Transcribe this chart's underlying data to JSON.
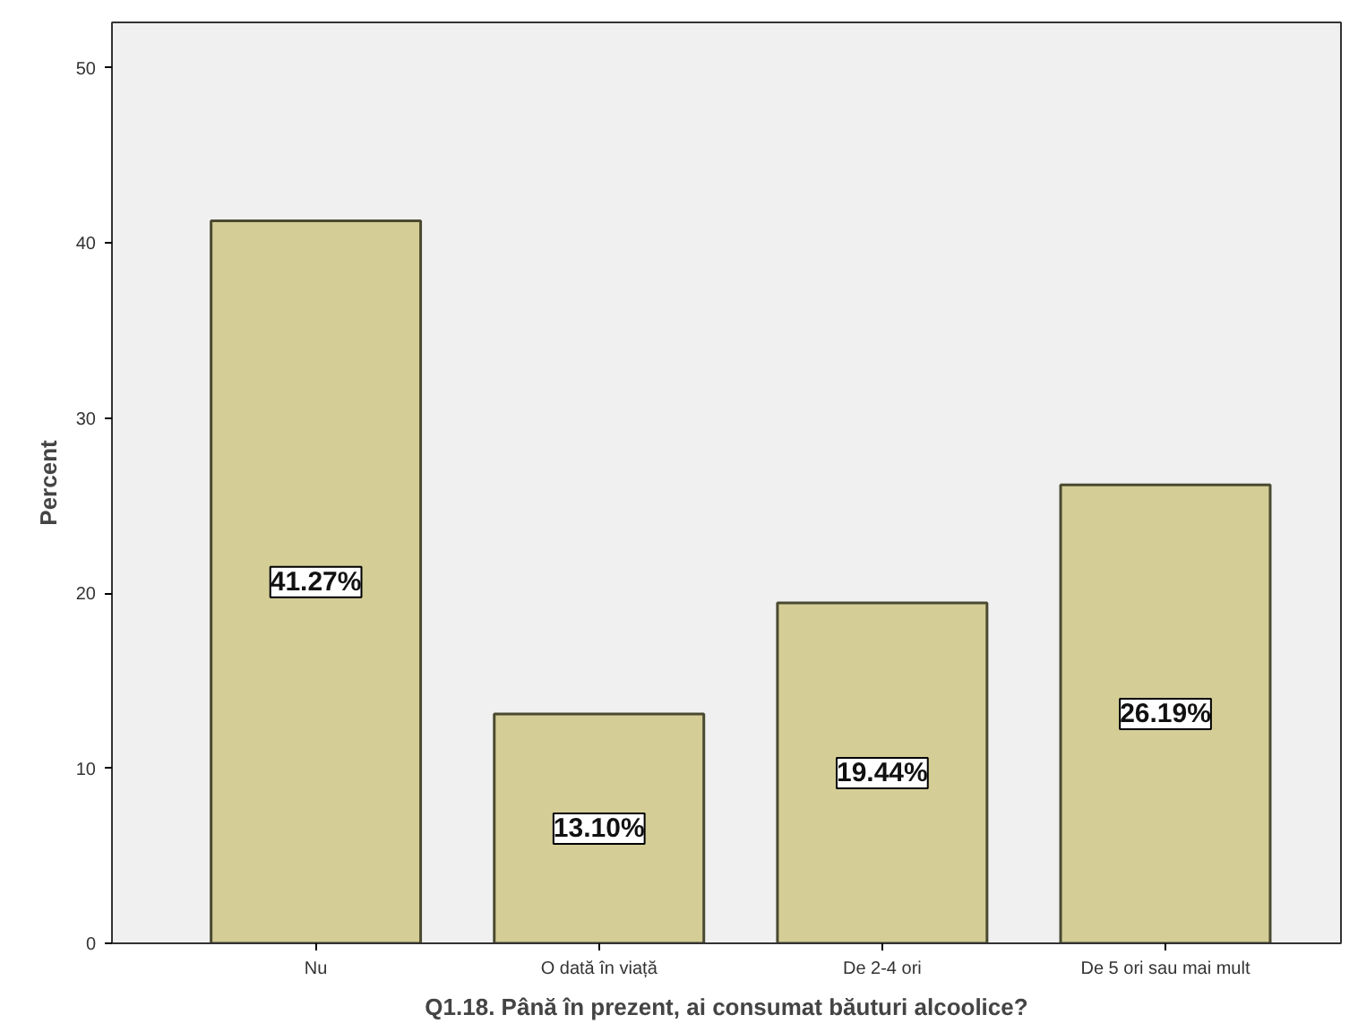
{
  "chart_data": {
    "type": "bar",
    "xlabel": "Q1.18. Până în prezent, ai consumat băuturi alcoolice?",
    "ylabel": "Percent",
    "categories": [
      "Nu",
      "O dată în viață",
      "De 2-4 ori",
      "De 5 ori sau mai mult"
    ],
    "values": [
      41.27,
      13.1,
      19.44,
      26.19
    ],
    "value_labels": [
      "41.27%",
      "13.10%",
      "19.44%",
      "26.19%"
    ],
    "color": "#d4cd96",
    "ylim": [
      0,
      52.6
    ],
    "yticks": [
      0,
      10,
      20,
      30,
      40,
      50
    ],
    "grid": false
  }
}
